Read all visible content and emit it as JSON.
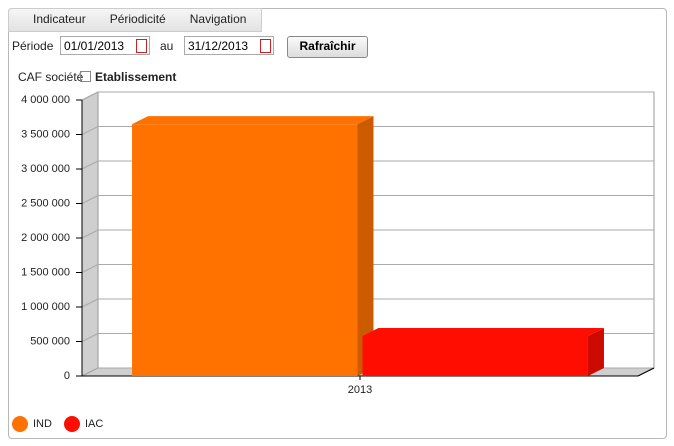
{
  "menu": [
    "Indicateur",
    "Périodicité",
    "Navigation"
  ],
  "form": {
    "period_label": "Période",
    "start": "01/01/2013",
    "between": "au",
    "end": "31/12/2013",
    "button": "Rafraîchir"
  },
  "breadcrumb": {
    "current": "CAF société",
    "link": "Etablissement"
  },
  "chart_data": {
    "type": "bar3d",
    "categories": [
      "2013"
    ],
    "series": [
      {
        "name": "IND",
        "color": "#ff7200",
        "values": [
          3650000
        ]
      },
      {
        "name": "IAC",
        "color": "#ff0d00",
        "values": [
          580000
        ]
      }
    ],
    "ylim": [
      0,
      4000000
    ],
    "yticks": [
      {
        "value": 0,
        "label": "0"
      },
      {
        "value": 500000,
        "label": "500 000"
      },
      {
        "value": 1000000,
        "label": "1 000 000"
      },
      {
        "value": 1500000,
        "label": "1 500 000"
      },
      {
        "value": 2000000,
        "label": "2 000 000"
      },
      {
        "value": 2500000,
        "label": "2 500 000"
      },
      {
        "value": 3000000,
        "label": "3 000 000"
      },
      {
        "value": 3500000,
        "label": "3 500 000"
      },
      {
        "value": 4000000,
        "label": "4 000 000"
      }
    ],
    "grid": true
  }
}
